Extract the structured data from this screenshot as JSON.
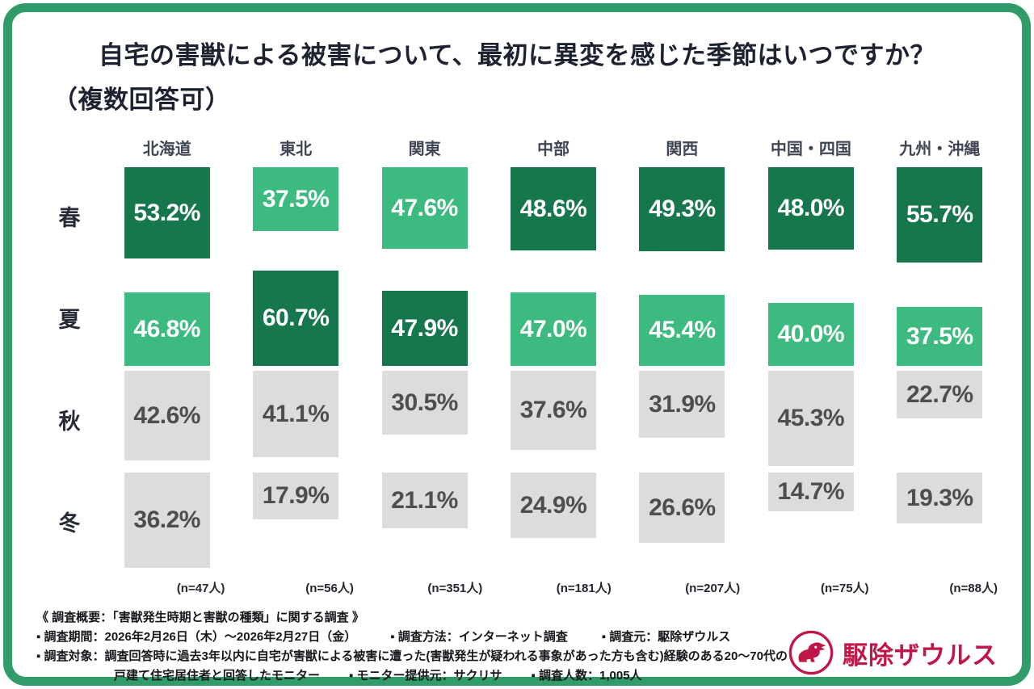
{
  "title": {
    "line1": "自宅の害獣による被害について、最初に異変を感じた季節はいつですか？",
    "line2": "（複数回答可）"
  },
  "chart_data": {
    "type": "bar",
    "title": "自宅の害獣による被害について、最初に異変を感じた季節はいつですか？（複数回答可）",
    "regions": [
      "北海道",
      "東北",
      "関東",
      "中部",
      "関西",
      "中国・四国",
      "九州・沖縄"
    ],
    "seasons": [
      "春",
      "夏",
      "秋",
      "冬"
    ],
    "series": [
      {
        "name": "春",
        "values": [
          53.2,
          37.5,
          47.6,
          48.6,
          49.3,
          48.0,
          55.7
        ]
      },
      {
        "name": "夏",
        "values": [
          46.8,
          60.7,
          47.9,
          47.0,
          45.4,
          40.0,
          37.5
        ]
      },
      {
        "name": "秋",
        "values": [
          42.6,
          41.1,
          30.5,
          37.6,
          31.9,
          45.3,
          22.7
        ]
      },
      {
        "name": "冬",
        "values": [
          36.2,
          17.9,
          21.1,
          24.9,
          26.6,
          14.7,
          19.3
        ]
      }
    ],
    "tones": [
      [
        "dark",
        "mid",
        "mid",
        "dark",
        "dark",
        "dark",
        "dark"
      ],
      [
        "mid",
        "dark",
        "dark",
        "mid",
        "mid",
        "mid",
        "mid"
      ],
      [
        "gray",
        "gray",
        "gray",
        "gray",
        "gray",
        "gray",
        "gray"
      ],
      [
        "gray",
        "gray",
        "gray",
        "gray",
        "gray",
        "gray",
        "gray"
      ]
    ],
    "sample_sizes": [
      "(n=47人)",
      "(n=56人)",
      "(n=351人)",
      "(n=181人)",
      "(n=207人)",
      "(n=75人)",
      "(n=88人)"
    ],
    "unit": "%",
    "value_range": [
      0,
      60.7
    ],
    "colors": {
      "dark_green": "#17774c",
      "mid_green": "#3dba80",
      "gray": "#dcdcdc",
      "frame_green": "#2f9c6a"
    }
  },
  "footer": {
    "heading": "《 調査概要：「害獣発生時期と害獣の種類」に関する調査 》",
    "row1": [
      "▪ 調査期間：2026年2月26日（木）〜2026年2月27日（金）",
      "▪ 調査方法：インターネット調査",
      "▪ 調査元：駆除ザウルス"
    ],
    "row2": "▪ 調査対象：調査回答時に過去3年以内に自宅が害獣による被害に遭った(害獣発生が疑われる事象があった方も含む)経験のある20〜70代の",
    "row3": [
      "戸建て住宅居住者と回答したモニター",
      "▪ モニター提供元：サクリサ",
      "▪ 調査人数：1,005人"
    ]
  },
  "logo": {
    "text": "駆除ザウルス",
    "color": "#bf1747"
  }
}
